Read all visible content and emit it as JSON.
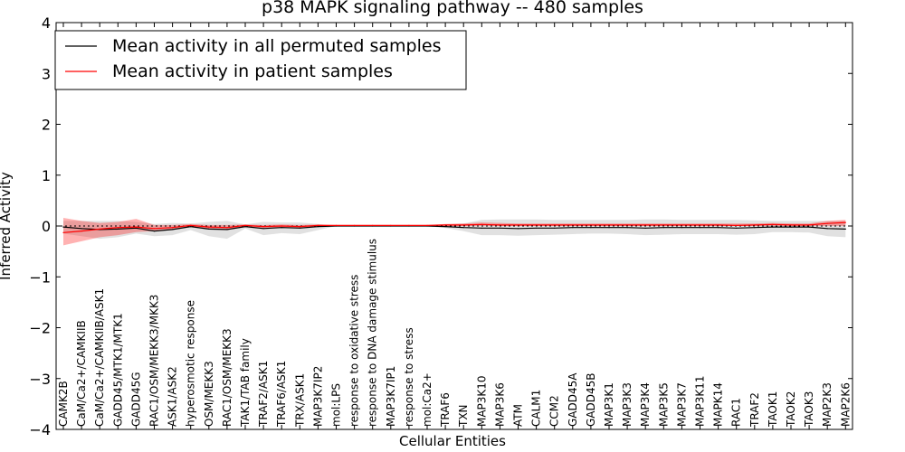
{
  "chart_data": {
    "type": "line",
    "title": "p38 MAPK signaling pathway -- 480 samples",
    "xlabel": "Cellular Entities",
    "ylabel": "Inferred Activity",
    "ylim": [
      -4,
      4
    ],
    "yticks": [
      -4,
      -3,
      -2,
      -1,
      0,
      1,
      2,
      3,
      4
    ],
    "ytick_labels": [
      "−4",
      "−3",
      "−2",
      "−1",
      "0",
      "1",
      "2",
      "3",
      "4"
    ],
    "legend_position": "top-left",
    "grid": false,
    "categories": [
      "CAMK2B",
      "CaM/Ca2+/CAMKIIB",
      "CaM/Ca2+/CAMKIIB/ASK1",
      "GADD45/MTK1/MTK1",
      "GADD45G",
      "RAC1/OSM/MEKK3/MKK3",
      "ASK1/ASK2",
      "hyperosmotic response",
      "OSM/MEKK3",
      "RAC1/OSM/MEKK3",
      "TAK1/TAB family",
      "TRAF2/ASK1",
      "TRAF6/ASK1",
      "TRX/ASK1",
      "MAP3K7IP2",
      "mol:LPS",
      "response to oxidative stress",
      "response to DNA damage stimulus",
      "MAP3K7IP1",
      "response to stress",
      "mol:Ca2+",
      "TRAF6",
      "TXN",
      "MAP3K10",
      "MAP3K6",
      "ATM",
      "CALM1",
      "CCM2",
      "GADD45A",
      "GADD45B",
      "MAP3K1",
      "MAP3K3",
      "MAP3K4",
      "MAP3K5",
      "MAP3K7",
      "MAP3K11",
      "MAPK14",
      "RAC1",
      "TRAF2",
      "TAOK1",
      "TAOK2",
      "TAOK3",
      "MAP2K3",
      "MAP2K6"
    ],
    "series": [
      {
        "name": "Mean activity in all permuted samples",
        "color": "#000000",
        "values": [
          -0.02,
          -0.05,
          -0.07,
          -0.06,
          -0.04,
          -0.1,
          -0.07,
          -0.01,
          -0.06,
          -0.07,
          -0.01,
          -0.05,
          -0.03,
          -0.04,
          -0.01,
          0,
          0,
          0,
          0,
          0,
          0,
          -0.01,
          -0.03,
          -0.04,
          -0.04,
          -0.05,
          -0.04,
          -0.04,
          -0.03,
          -0.03,
          -0.03,
          -0.03,
          -0.04,
          -0.03,
          -0.03,
          -0.03,
          -0.03,
          -0.04,
          -0.03,
          -0.02,
          -0.02,
          -0.02,
          -0.05,
          -0.06
        ],
        "band_low": [
          -0.15,
          -0.2,
          -0.25,
          -0.22,
          -0.15,
          -0.2,
          -0.18,
          -0.08,
          -0.2,
          -0.25,
          -0.05,
          -0.18,
          -0.14,
          -0.16,
          -0.08,
          0,
          0,
          0,
          0,
          0,
          0,
          -0.04,
          -0.1,
          -0.18,
          -0.18,
          -0.19,
          -0.18,
          -0.17,
          -0.16,
          -0.15,
          -0.15,
          -0.16,
          -0.18,
          -0.17,
          -0.16,
          -0.16,
          -0.16,
          -0.17,
          -0.16,
          -0.12,
          -0.12,
          -0.13,
          -0.2,
          -0.22
        ],
        "band_high": [
          0.1,
          0.1,
          0.1,
          0.1,
          0.08,
          0.04,
          0.06,
          0.05,
          0.08,
          0.1,
          0.03,
          0.08,
          0.07,
          0.07,
          0.04,
          0,
          0,
          0,
          0,
          0,
          0,
          0.03,
          0.05,
          0.12,
          0.13,
          0.13,
          0.13,
          0.12,
          0.12,
          0.12,
          0.12,
          0.12,
          0.13,
          0.13,
          0.12,
          0.12,
          0.12,
          0.12,
          0.11,
          0.1,
          0.1,
          0.1,
          0.1,
          0.1
        ]
      },
      {
        "name": "Mean activity in patient samples",
        "color": "#ff0000",
        "values": [
          -0.13,
          -0.1,
          -0.06,
          -0.03,
          -0.02,
          -0.05,
          -0.03,
          0.01,
          -0.02,
          -0.03,
          0.01,
          -0.01,
          0,
          -0.01,
          0.01,
          0.01,
          0.01,
          0.01,
          0.01,
          0.01,
          0.01,
          0.02,
          0.02,
          0.03,
          0.02,
          0.02,
          0.02,
          0.02,
          0.02,
          0.02,
          0.02,
          0.02,
          0.02,
          0.02,
          0.02,
          0.02,
          0.02,
          0.01,
          0.02,
          0.03,
          0.02,
          0.02,
          0.05,
          0.07
        ],
        "band_low": [
          -0.38,
          -0.3,
          -0.22,
          -0.18,
          -0.12,
          -0.1,
          -0.07,
          -0.02,
          -0.06,
          -0.08,
          -0.02,
          -0.04,
          -0.03,
          -0.04,
          -0.01,
          0,
          0,
          0,
          0,
          0,
          0,
          0,
          0,
          0,
          0,
          0,
          0,
          0,
          0,
          0,
          0,
          0,
          0,
          0,
          0,
          0,
          0,
          0,
          0,
          0,
          0,
          0,
          0,
          0
        ],
        "band_high": [
          0.16,
          0.1,
          0.06,
          0.08,
          0.14,
          0.02,
          0.02,
          0.04,
          0.02,
          0.02,
          0.03,
          0.02,
          0.03,
          0.02,
          0.03,
          0.02,
          0.02,
          0.02,
          0.02,
          0.02,
          0.02,
          0.04,
          0.05,
          0.07,
          0.06,
          0.05,
          0.05,
          0.05,
          0.05,
          0.05,
          0.05,
          0.05,
          0.05,
          0.05,
          0.05,
          0.05,
          0.05,
          0.05,
          0.05,
          0.06,
          0.05,
          0.05,
          0.1,
          0.12
        ]
      }
    ]
  }
}
